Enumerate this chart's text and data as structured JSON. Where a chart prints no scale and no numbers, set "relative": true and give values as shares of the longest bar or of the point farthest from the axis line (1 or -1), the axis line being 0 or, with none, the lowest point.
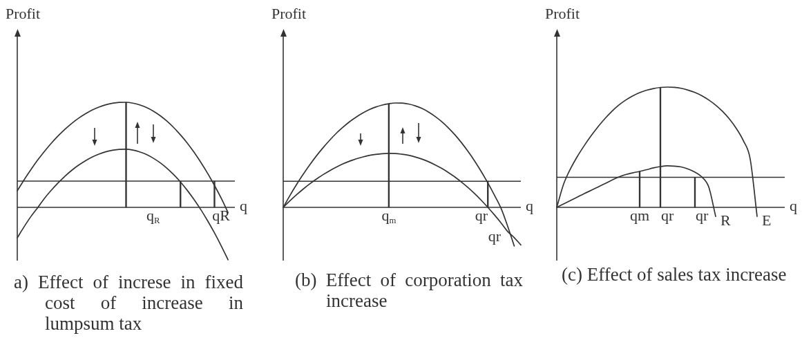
{
  "chart_data": [
    {
      "type": "line",
      "title": "a) Effect of increse in fixed cost of increase in lumpsum tax",
      "xlabel": "q",
      "ylabel": "Profit",
      "relative": true,
      "tick_labels": "x",
      "categories": [
        null,
        null,
        null,
        null,
        null,
        null,
        null,
        null,
        null,
        null,
        null,
        null,
        null,
        null,
        null,
        null,
        null,
        null,
        null,
        null,
        "q$_{R}$",
        null,
        null,
        null,
        null,
        null,
        null,
        null,
        null,
        null,
        "qR",
        null,
        null
      ],
      "series": [
        {
          "color": "#333333",
          "values": [
            0.157,
            0.262,
            0.359,
            0.45,
            0.533,
            0.61,
            0.68,
            0.743,
            0.799,
            0.848,
            0.89,
            0.926,
            0.954,
            0.976,
            0.991,
            0.999,
            1,
            0.992,
            0.975,
            0.95,
            0.916,
            0.873,
            0.821,
            0.76,
            0.69,
            0.612,
            0.524,
            0.428,
            0.323,
            0.209,
            0.086,
            -0.05,
            null
          ]
        },
        {
          "color": "#333333",
          "values": [
            -0.29,
            -0.185,
            -0.088,
            -0.003,
            0.086,
            0.163,
            0.233,
            0.296,
            0.352,
            0.401,
            0.443,
            0.479,
            0.507,
            0.529,
            0.544,
            0.552,
            0.553,
            0.545,
            0.528,
            0.503,
            0.468,
            0.425,
            0.373,
            0.312,
            0.242,
            0.162,
            0.074,
            -0.022,
            -0.128,
            -0.243,
            -0.367,
            -0.499,
            null
          ]
        },
        {
          "type": "bar",
          "color": "#333333",
          "values": [
            null,
            null,
            null,
            null,
            null,
            null,
            null,
            null,
            null,
            null,
            null,
            null,
            null,
            null,
            null,
            null,
            1,
            null,
            null,
            null,
            null,
            null,
            null,
            null,
            0.25,
            null,
            null,
            null,
            null,
            0.25,
            null,
            null,
            null
          ]
        }
      ],
      "ref_lines": [
        {
          "axis": "y",
          "value": 0.25,
          "color": "#333333"
        }
      ]
    },
    {
      "type": "line",
      "title": "(b) Effect of corporation tax increase",
      "xlabel": "q",
      "ylabel": "Profit",
      "relative": true,
      "tick_labels": "x",
      "categories": [
        null,
        null,
        null,
        null,
        null,
        null,
        null,
        null,
        null,
        null,
        null,
        null,
        null,
        null,
        null,
        null,
        "q$_{m}$",
        null,
        null,
        null,
        null,
        null,
        null,
        null,
        null,
        null,
        null,
        null,
        null,
        null,
        "qr",
        null,
        "qr",
        null,
        null,
        null,
        null
      ],
      "series": [
        {
          "color": "#333333",
          "values": [
            0,
            0.112,
            0.217,
            0.315,
            0.406,
            0.491,
            0.569,
            0.641,
            0.707,
            0.765,
            0.818,
            0.863,
            0.902,
            0.935,
            0.961,
            0.98,
            0.993,
            1,
            0.999,
            0.99,
            0.973,
            0.948,
            0.914,
            0.872,
            0.822,
            0.763,
            0.696,
            0.62,
            0.536,
            0.444,
            0.343,
            0.234,
            0.117,
            -0.009,
            -0.18,
            -0.37,
            null
          ]
        },
        {
          "color": "#333333",
          "values": [
            0,
            0.062,
            0.12,
            0.174,
            0.224,
            0.27,
            0.312,
            0.35,
            0.384,
            0.415,
            0.441,
            0.464,
            0.482,
            0.497,
            0.507,
            0.514,
            0.517,
            0.516,
            0.509,
            0.499,
            0.483,
            0.463,
            0.438,
            0.408,
            0.374,
            0.335,
            0.291,
            0.242,
            0.189,
            0.131,
            0.068,
            0,
            -0.072,
            -0.149,
            -0.231,
            -0.29,
            -0.36
          ]
        },
        {
          "type": "bar",
          "color": "#333333",
          "values": [
            null,
            null,
            null,
            null,
            null,
            null,
            null,
            null,
            null,
            null,
            null,
            null,
            null,
            null,
            null,
            null,
            0.993,
            null,
            null,
            null,
            null,
            null,
            null,
            null,
            null,
            null,
            null,
            null,
            null,
            null,
            null,
            0.25,
            null,
            null,
            null,
            null,
            null
          ]
        }
      ],
      "ref_lines": [
        {
          "axis": "y",
          "value": 0.25,
          "color": "#333333"
        }
      ]
    },
    {
      "type": "line",
      "title": "(c) Effect of sales tax increase",
      "xlabel": "q",
      "ylabel": "Profit",
      "relative": true,
      "tick_labels": "x",
      "categories": [
        null,
        null,
        null,
        null,
        null,
        null,
        null,
        null,
        null,
        null,
        null,
        null,
        "qm",
        null,
        null,
        null,
        "qr",
        null,
        null,
        null,
        null,
        "qr",
        null,
        null,
        null,
        null,
        null,
        null,
        null,
        null,
        null,
        null,
        null,
        null
      ],
      "series": [
        {
          "name": "E",
          "color": "#333333",
          "values": [
            0,
            0.195,
            0.322,
            0.425,
            0.515,
            0.597,
            0.672,
            0.74,
            0.8,
            0.851,
            0.893,
            0.927,
            0.954,
            0.974,
            0.988,
            0.997,
            1,
            0.998,
            0.99,
            0.975,
            0.955,
            0.928,
            0.893,
            0.85,
            0.798,
            0.734,
            0.655,
            0.555,
            0.402,
            -0.075,
            null,
            null,
            null,
            null
          ]
        },
        {
          "name": "R",
          "color": "#333333",
          "values": [
            0,
            0.029,
            0.057,
            0.086,
            0.115,
            0.142,
            0.17,
            0.198,
            0.227,
            0.253,
            0.273,
            0.287,
            0.299,
            0.313,
            0.328,
            0.339,
            0.345,
            0.343,
            0.336,
            0.319,
            0.293,
            0.253,
            0.17,
            -0.075,
            null,
            null,
            null,
            null,
            null,
            null,
            null,
            null,
            null,
            null
          ]
        },
        {
          "type": "bar",
          "color": "#333333",
          "values": [
            null,
            null,
            null,
            null,
            null,
            null,
            null,
            null,
            null,
            null,
            null,
            null,
            0.299,
            null,
            null,
            0.997,
            null,
            null,
            null,
            null,
            0.25,
            null,
            null,
            null,
            null,
            null,
            null,
            null,
            null,
            null,
            null,
            null,
            null,
            null
          ]
        }
      ],
      "ref_lines": [
        {
          "axis": "y",
          "value": 0.25,
          "color": "#333333"
        }
      ]
    }
  ]
}
